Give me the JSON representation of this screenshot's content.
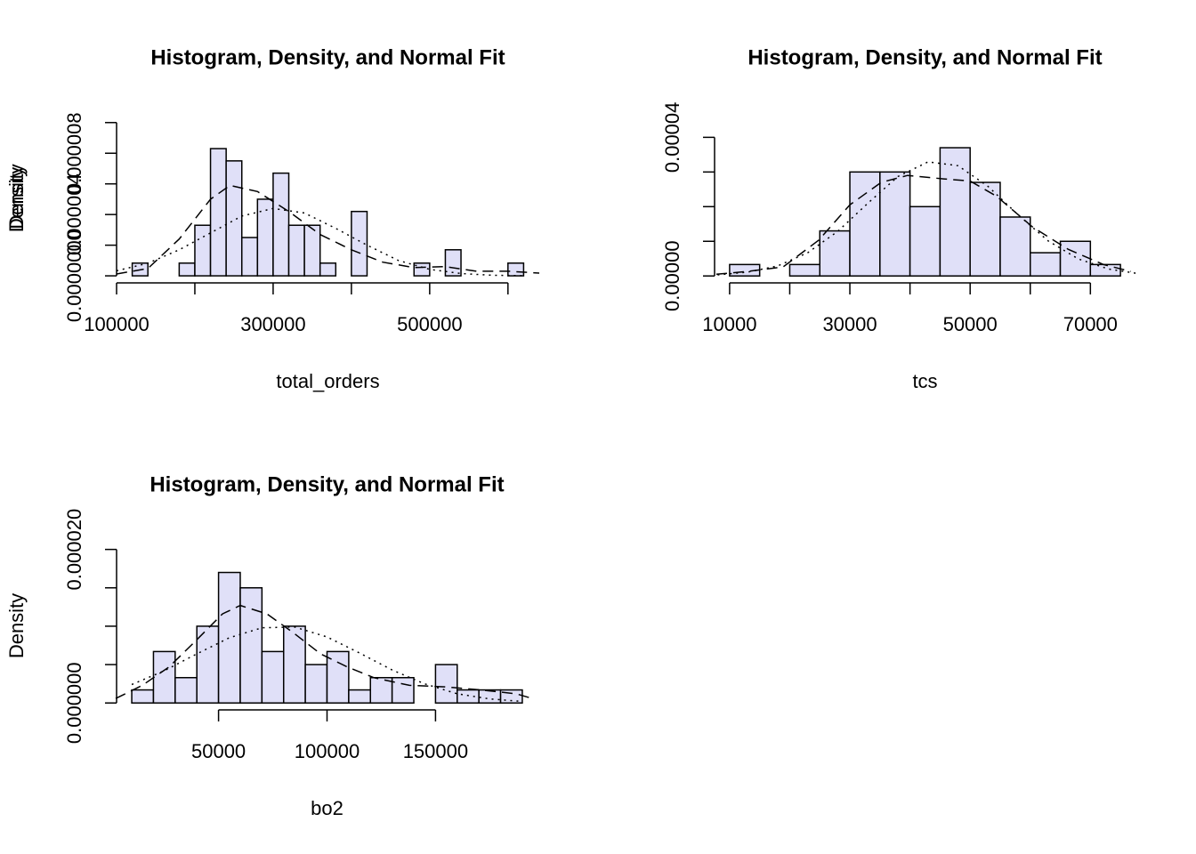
{
  "chart_data": [
    {
      "type": "histogram",
      "title": "Histogram, Density, and Normal Fit",
      "xlabel": "total_orders",
      "ylabel": "Density",
      "bins": [
        120000,
        140000,
        160000,
        180000,
        200000,
        220000,
        240000,
        260000,
        280000,
        300000,
        320000,
        340000,
        360000,
        380000,
        400000,
        420000,
        440000,
        460000,
        480000,
        500000,
        520000,
        540000,
        560000,
        580000,
        600000,
        620000
      ],
      "values": [
        8.3e-07,
        0,
        0,
        8.3e-07,
        3.3e-06,
        8.3e-06,
        7.5e-06,
        2.5e-06,
        5e-06,
        6.7e-06,
        3.3e-06,
        3.3e-06,
        8.3e-07,
        0,
        4.2e-06,
        0,
        0,
        0,
        8.3e-07,
        0,
        1.7e-06,
        0,
        0,
        0,
        8.3e-07
      ],
      "color": "#e0e0f8",
      "xlim": [
        100000,
        640000
      ],
      "ylim": [
        -4.6e-07,
        1.08e-05
      ],
      "xticks": [
        100000,
        200000,
        300000,
        400000,
        500000,
        600000
      ],
      "yticks": [
        {
          "value": 0,
          "label": "0.0000000"
        },
        2e-06,
        {
          "value": 4e-06,
          "label": "0.000004"
        },
        6e-06,
        {
          "value": 8e-06,
          "label": "0.000008"
        },
        1e-05
      ],
      "density_curve": {
        "style": "dashed",
        "x": [
          100000,
          140000,
          180000,
          220000,
          245000,
          280000,
          320000,
          360000,
          400000,
          440000,
          480000,
          520000,
          560000,
          600000,
          640000
        ],
        "y": [
          1.2e-07,
          4.8e-07,
          2.4e-06,
          5e-06,
          5.9e-06,
          5.5e-06,
          4.2e-06,
          2.7e-06,
          1.7e-06,
          8.9e-07,
          5.4e-07,
          6e-07,
          3e-07,
          3e-07,
          1.8e-07
        ]
      },
      "normal_curve": {
        "style": "dotted",
        "x": [
          100000,
          140000,
          180000,
          220000,
          260000,
          300000,
          340000,
          380000,
          420000,
          460000,
          500000,
          540000,
          580000,
          620000
        ],
        "y": [
          3.3e-07,
          8.2e-07,
          1.7e-06,
          2.8e-06,
          3.9e-06,
          4.4e-06,
          4.1e-06,
          3.1e-06,
          2e-06,
          1e-06,
          4.2e-07,
          1.5e-07,
          4e-08,
          1e-08
        ]
      }
    },
    {
      "type": "histogram",
      "title": "Histogram, Density, and Normal Fit",
      "xlabel": "tcs",
      "ylabel": "Density",
      "bins": [
        10000,
        15000,
        20000,
        25000,
        30000,
        35000,
        40000,
        45000,
        50000,
        55000,
        60000,
        65000,
        70000,
        75000
      ],
      "values": [
        3.3e-06,
        0,
        3.3e-06,
        1.3e-05,
        3e-05,
        3e-05,
        2e-05,
        3.7e-05,
        2.7e-05,
        1.7e-05,
        6.7e-06,
        1e-05,
        3.3e-06
      ],
      "color": "#e0e0f8",
      "xlim": [
        7500,
        77500
      ],
      "ylim": [
        -2e-06,
        4.6e-05
      ],
      "xticks": [
        10000,
        20000,
        30000,
        40000,
        50000,
        60000,
        70000
      ],
      "yticks": [
        {
          "value": 0,
          "label": "0.00000"
        },
        1e-05,
        2e-05,
        3e-05,
        {
          "value": 4e-05,
          "label": "0.00004"
        }
      ],
      "density_curve": {
        "style": "dashed",
        "x": [
          7800,
          13000,
          18900,
          24800,
          30000,
          35200,
          39600,
          45600,
          50000,
          54400,
          60400,
          66300,
          72200,
          76700
        ],
        "y": [
          5e-07,
          1.3e-06,
          2.6e-06,
          1.03e-05,
          2.05e-05,
          2.7e-05,
          2.9e-05,
          2.8e-05,
          2.74e-05,
          2.3e-05,
          1.41e-05,
          7.7e-06,
          3.3e-06,
          1.3e-06
        ]
      },
      "normal_curve": {
        "style": "dotted",
        "x": [
          8000,
          13000,
          18000,
          23000,
          28000,
          33000,
          38000,
          43000,
          48000,
          53000,
          58000,
          63000,
          68000,
          73000,
          78000
        ],
        "y": [
          3.2e-07,
          1.1e-06,
          2.9e-06,
          6.7e-06,
          1.29e-05,
          2.1e-05,
          2.87e-05,
          3.29e-05,
          3.18e-05,
          2.58e-05,
          1.76e-05,
          1.01e-05,
          4.9e-06,
          2e-06,
          6.7e-07
        ]
      }
    },
    {
      "type": "histogram",
      "title": "Histogram, Density, and Normal Fit",
      "xlabel": "bo2",
      "ylabel": "Density",
      "bins": [
        10000,
        20000,
        30000,
        40000,
        50000,
        60000,
        70000,
        80000,
        90000,
        100000,
        110000,
        120000,
        130000,
        140000,
        150000,
        160000,
        170000,
        180000,
        190000
      ],
      "values": [
        1.7e-06,
        6.7e-06,
        3.3e-06,
        1e-05,
        1.7e-05,
        1.5e-05,
        6.7e-06,
        1e-05,
        5e-06,
        6.7e-06,
        1.7e-06,
        3.3e-06,
        3.3e-06,
        0,
        5e-06,
        1.7e-06,
        1.7e-06,
        1.7e-06
      ],
      "color": "#e0e0f8",
      "xlim": [
        3000,
        197000
      ],
      "ylim": [
        -9e-07,
        2.1e-05
      ],
      "xticks": [
        50000,
        100000,
        150000
      ],
      "yticks": [
        {
          "value": 0,
          "label": "0.000000"
        },
        5e-06,
        1e-05,
        1.5e-05,
        {
          "value": 2e-05,
          "label": "0.000020"
        }
      ],
      "density_curve": {
        "style": "dashed",
        "x": [
          2600,
          14900,
          27200,
          39500,
          51800,
          60000,
          72300,
          84700,
          97000,
          109300,
          121600,
          138000,
          154400,
          170800,
          187200,
          194600
        ],
        "y": [
          5.8e-07,
          2.3e-06,
          4.7e-06,
          8.1e-06,
          1.16e-05,
          1.27e-05,
          1.16e-05,
          9.1e-06,
          6.4e-06,
          4.7e-06,
          3.3e-06,
          2.3e-06,
          2.1e-06,
          1.7e-06,
          1.2e-06,
          5.8e-07
        ]
      },
      "normal_curve": {
        "style": "dotted",
        "x": [
          10000,
          25000,
          40000,
          55000,
          70000,
          85000,
          100000,
          115000,
          130000,
          145000,
          160000,
          175000,
          190000
        ],
        "y": [
          2.4e-06,
          4.2e-06,
          6.4e-06,
          8.5e-06,
          9.8e-06,
          9.9e-06,
          8.6e-06,
          6.5e-06,
          4.3e-06,
          2.5e-06,
          1.2e-06,
          5.3e-07,
          2e-07
        ]
      }
    }
  ]
}
